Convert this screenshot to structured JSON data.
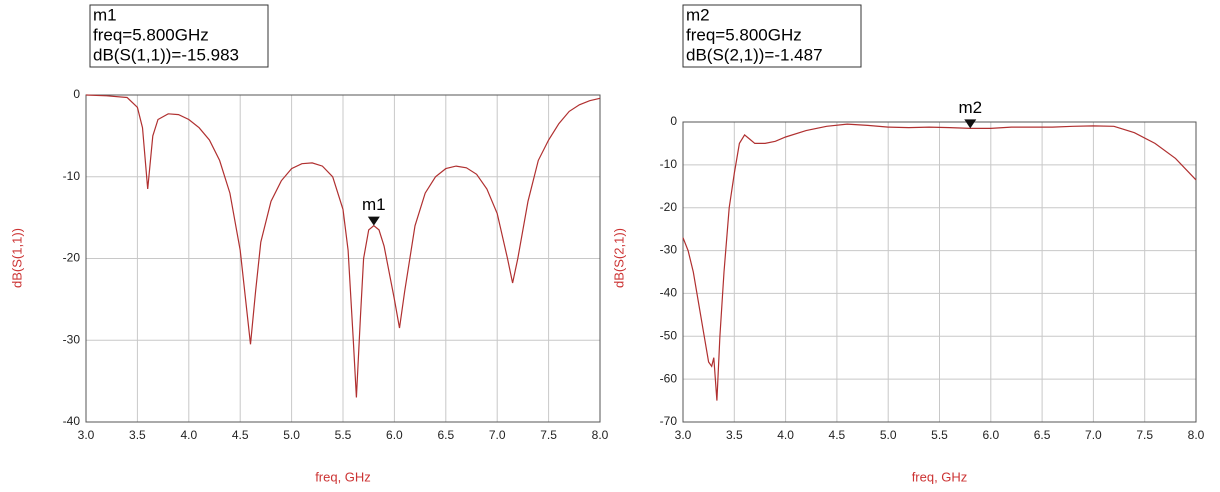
{
  "chart_data": [
    {
      "type": "line",
      "annotations": [
        "m1",
        "freq=5.800GHz",
        "dB(S(1,1))=-15.983"
      ],
      "marker": {
        "label": "m1",
        "x": 5.8,
        "y": -15.983
      },
      "x_label": "freq, GHz",
      "y_label": "dB(S(1,1))",
      "color": "#b03030",
      "xlim": [
        3,
        8
      ],
      "ylim": [
        -40,
        0
      ],
      "xticks": [
        {
          "value": 3,
          "label": "3.0"
        },
        {
          "value": 3.5,
          "label": "3.5"
        },
        {
          "value": 4,
          "label": "4.0"
        },
        {
          "value": 4.5,
          "label": "4.5"
        },
        {
          "value": 5,
          "label": "5.0"
        },
        {
          "value": 5.5,
          "label": "5.5"
        },
        {
          "value": 6,
          "label": "6.0"
        },
        {
          "value": 6.5,
          "label": "6.5"
        },
        {
          "value": 7,
          "label": "7.0"
        },
        {
          "value": 7.5,
          "label": "7.5"
        },
        {
          "value": 8,
          "label": "8.0"
        }
      ],
      "yticks": [
        0,
        -10,
        -20,
        -30,
        -40
      ],
      "grid": true,
      "x": [
        3.0,
        3.2,
        3.4,
        3.5,
        3.55,
        3.6,
        3.65,
        3.7,
        3.8,
        3.9,
        4.0,
        4.1,
        4.2,
        4.3,
        4.4,
        4.5,
        4.6,
        4.65,
        4.7,
        4.8,
        4.9,
        5.0,
        5.1,
        5.2,
        5.3,
        5.4,
        5.5,
        5.55,
        5.6,
        5.63,
        5.67,
        5.7,
        5.75,
        5.8,
        5.85,
        5.9,
        6.0,
        6.05,
        6.1,
        6.2,
        6.3,
        6.4,
        6.5,
        6.6,
        6.7,
        6.8,
        6.9,
        7.0,
        7.1,
        7.15,
        7.2,
        7.3,
        7.4,
        7.5,
        7.6,
        7.7,
        7.8,
        7.9,
        8.0
      ],
      "values": [
        0,
        -0.1,
        -0.3,
        -1.5,
        -4,
        -11.5,
        -5,
        -3,
        -2.3,
        -2.4,
        -3,
        -4,
        -5.5,
        -8,
        -12,
        -19,
        -30.5,
        -24,
        -18,
        -13,
        -10.5,
        -9,
        -8.4,
        -8.3,
        -8.7,
        -10,
        -14,
        -19,
        -30,
        -37,
        -27,
        -20,
        -16.5,
        -15.983,
        -16.5,
        -18.5,
        -25,
        -28.5,
        -24,
        -16,
        -12,
        -10,
        -9,
        -8.7,
        -8.9,
        -9.7,
        -11.5,
        -14.5,
        -20,
        -23,
        -20,
        -13,
        -8,
        -5.5,
        -3.5,
        -2,
        -1.2,
        -0.7,
        -0.4
      ]
    },
    {
      "type": "line",
      "annotations": [
        "m2",
        "freq=5.800GHz",
        "dB(S(2,1))=-1.487"
      ],
      "marker": {
        "label": "m2",
        "x": 5.8,
        "y": -1.487
      },
      "x_label": "freq, GHz",
      "y_label": "dB(S(2,1))",
      "color": "#b03030",
      "xlim": [
        3,
        8
      ],
      "ylim": [
        -70,
        0
      ],
      "xticks": [
        {
          "value": 3,
          "label": "3.0"
        },
        {
          "value": 3.5,
          "label": "3.5"
        },
        {
          "value": 4,
          "label": "4.0"
        },
        {
          "value": 4.5,
          "label": "4.5"
        },
        {
          "value": 5,
          "label": "5.0"
        },
        {
          "value": 5.5,
          "label": "5.5"
        },
        {
          "value": 6,
          "label": "6.0"
        },
        {
          "value": 6.5,
          "label": "6.5"
        },
        {
          "value": 7,
          "label": "7.0"
        },
        {
          "value": 7.5,
          "label": "7.5"
        },
        {
          "value": 8,
          "label": "8.0"
        }
      ],
      "yticks": [
        0,
        -10,
        -20,
        -30,
        -40,
        -50,
        -60,
        -70
      ],
      "grid": true,
      "x": [
        3.0,
        3.05,
        3.1,
        3.15,
        3.2,
        3.25,
        3.28,
        3.3,
        3.33,
        3.36,
        3.4,
        3.45,
        3.5,
        3.55,
        3.6,
        3.65,
        3.7,
        3.8,
        3.9,
        4.0,
        4.2,
        4.4,
        4.6,
        4.8,
        5.0,
        5.2,
        5.4,
        5.6,
        5.8,
        6.0,
        6.2,
        6.4,
        6.6,
        6.8,
        7.0,
        7.2,
        7.4,
        7.6,
        7.8,
        8.0
      ],
      "values": [
        -27,
        -30,
        -35,
        -42,
        -49,
        -56,
        -57,
        -55,
        -65,
        -50,
        -35,
        -20,
        -12,
        -5,
        -3,
        -4,
        -5,
        -5,
        -4.5,
        -3.5,
        -2,
        -1,
        -0.5,
        -0.8,
        -1.2,
        -1.3,
        -1.2,
        -1.3,
        -1.487,
        -1.5,
        -1.2,
        -1.2,
        -1.2,
        -1,
        -0.9,
        -1,
        -2.5,
        -5,
        -8.5,
        -13.5
      ]
    }
  ]
}
